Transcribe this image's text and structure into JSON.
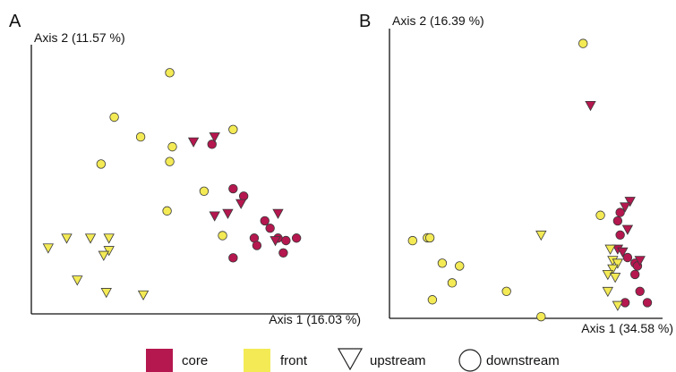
{
  "colors": {
    "core": "#b5174f",
    "front": "#f3ea55",
    "marker_stroke": "#3a3a3a"
  },
  "chart_data": [
    {
      "type": "scatter",
      "panel": "A",
      "xlabel": "Axis 1 (16.03 %)",
      "ylabel": "Axis 2 (11.57 %)",
      "grid": false,
      "points": [
        {
          "x": 0.49,
          "y": 0.93,
          "group": "front",
          "position": "downstream"
        },
        {
          "x": 0.28,
          "y": 0.75,
          "group": "front",
          "position": "downstream"
        },
        {
          "x": 0.38,
          "y": 0.67,
          "group": "front",
          "position": "downstream"
        },
        {
          "x": 0.5,
          "y": 0.63,
          "group": "front",
          "position": "downstream"
        },
        {
          "x": 0.73,
          "y": 0.7,
          "group": "front",
          "position": "downstream"
        },
        {
          "x": 0.23,
          "y": 0.56,
          "group": "front",
          "position": "downstream"
        },
        {
          "x": 0.49,
          "y": 0.57,
          "group": "front",
          "position": "downstream"
        },
        {
          "x": 0.62,
          "y": 0.45,
          "group": "front",
          "position": "downstream"
        },
        {
          "x": 0.48,
          "y": 0.37,
          "group": "front",
          "position": "downstream"
        },
        {
          "x": 0.69,
          "y": 0.27,
          "group": "front",
          "position": "downstream"
        },
        {
          "x": 0.65,
          "y": 0.64,
          "group": "core",
          "position": "downstream"
        },
        {
          "x": 0.73,
          "y": 0.46,
          "group": "core",
          "position": "downstream"
        },
        {
          "x": 0.77,
          "y": 0.43,
          "group": "core",
          "position": "downstream"
        },
        {
          "x": 0.85,
          "y": 0.33,
          "group": "core",
          "position": "downstream"
        },
        {
          "x": 0.87,
          "y": 0.3,
          "group": "core",
          "position": "downstream"
        },
        {
          "x": 0.81,
          "y": 0.26,
          "group": "core",
          "position": "downstream"
        },
        {
          "x": 0.82,
          "y": 0.23,
          "group": "core",
          "position": "downstream"
        },
        {
          "x": 0.9,
          "y": 0.26,
          "group": "core",
          "position": "downstream"
        },
        {
          "x": 0.93,
          "y": 0.25,
          "group": "core",
          "position": "downstream"
        },
        {
          "x": 0.97,
          "y": 0.26,
          "group": "core",
          "position": "downstream"
        },
        {
          "x": 0.92,
          "y": 0.2,
          "group": "core",
          "position": "downstream"
        },
        {
          "x": 0.73,
          "y": 0.18,
          "group": "core",
          "position": "downstream"
        },
        {
          "x": 0.58,
          "y": 0.65,
          "group": "core",
          "position": "upstream"
        },
        {
          "x": 0.66,
          "y": 0.67,
          "group": "core",
          "position": "upstream"
        },
        {
          "x": 0.76,
          "y": 0.4,
          "group": "core",
          "position": "upstream"
        },
        {
          "x": 0.66,
          "y": 0.35,
          "group": "core",
          "position": "upstream"
        },
        {
          "x": 0.71,
          "y": 0.36,
          "group": "core",
          "position": "upstream"
        },
        {
          "x": 0.9,
          "y": 0.36,
          "group": "core",
          "position": "upstream"
        },
        {
          "x": 0.89,
          "y": 0.25,
          "group": "core",
          "position": "upstream"
        },
        {
          "x": 0.1,
          "y": 0.26,
          "group": "front",
          "position": "upstream"
        },
        {
          "x": 0.19,
          "y": 0.26,
          "group": "front",
          "position": "upstream"
        },
        {
          "x": 0.26,
          "y": 0.26,
          "group": "front",
          "position": "upstream"
        },
        {
          "x": 0.03,
          "y": 0.22,
          "group": "front",
          "position": "upstream"
        },
        {
          "x": 0.26,
          "y": 0.21,
          "group": "front",
          "position": "upstream"
        },
        {
          "x": 0.24,
          "y": 0.19,
          "group": "front",
          "position": "upstream"
        },
        {
          "x": 0.14,
          "y": 0.09,
          "group": "front",
          "position": "upstream"
        },
        {
          "x": 0.25,
          "y": 0.04,
          "group": "front",
          "position": "upstream"
        },
        {
          "x": 0.39,
          "y": 0.03,
          "group": "front",
          "position": "upstream"
        }
      ]
    },
    {
      "type": "scatter",
      "panel": "B",
      "xlabel": "Axis 1 (34.58 %)",
      "ylabel": "Axis 2 (16.39 %)",
      "grid": false,
      "points": [
        {
          "x": 0.74,
          "y": 0.96,
          "group": "front",
          "position": "downstream"
        },
        {
          "x": 0.77,
          "y": 0.74,
          "group": "core",
          "position": "upstream"
        },
        {
          "x": 0.81,
          "y": 0.35,
          "group": "front",
          "position": "downstream"
        },
        {
          "x": 0.05,
          "y": 0.26,
          "group": "front",
          "position": "downstream"
        },
        {
          "x": 0.11,
          "y": 0.27,
          "group": "front",
          "position": "downstream"
        },
        {
          "x": 0.12,
          "y": 0.27,
          "group": "front",
          "position": "downstream"
        },
        {
          "x": 0.17,
          "y": 0.18,
          "group": "front",
          "position": "downstream"
        },
        {
          "x": 0.24,
          "y": 0.17,
          "group": "front",
          "position": "downstream"
        },
        {
          "x": 0.21,
          "y": 0.11,
          "group": "front",
          "position": "downstream"
        },
        {
          "x": 0.13,
          "y": 0.05,
          "group": "front",
          "position": "downstream"
        },
        {
          "x": 0.43,
          "y": 0.08,
          "group": "front",
          "position": "downstream"
        },
        {
          "x": 0.57,
          "y": -0.01,
          "group": "front",
          "position": "downstream"
        },
        {
          "x": 0.57,
          "y": 0.28,
          "group": "front",
          "position": "upstream"
        },
        {
          "x": 0.93,
          "y": 0.4,
          "group": "core",
          "position": "upstream"
        },
        {
          "x": 0.91,
          "y": 0.38,
          "group": "core",
          "position": "upstream"
        },
        {
          "x": 0.89,
          "y": 0.36,
          "group": "core",
          "position": "downstream"
        },
        {
          "x": 0.88,
          "y": 0.33,
          "group": "core",
          "position": "downstream"
        },
        {
          "x": 0.92,
          "y": 0.3,
          "group": "core",
          "position": "upstream"
        },
        {
          "x": 0.89,
          "y": 0.28,
          "group": "core",
          "position": "downstream"
        },
        {
          "x": 0.88,
          "y": 0.23,
          "group": "core",
          "position": "upstream"
        },
        {
          "x": 0.9,
          "y": 0.22,
          "group": "core",
          "position": "upstream"
        },
        {
          "x": 0.92,
          "y": 0.2,
          "group": "core",
          "position": "downstream"
        },
        {
          "x": 0.95,
          "y": 0.18,
          "group": "core",
          "position": "downstream"
        },
        {
          "x": 0.96,
          "y": 0.17,
          "group": "core",
          "position": "downstream"
        },
        {
          "x": 0.97,
          "y": 0.19,
          "group": "core",
          "position": "upstream"
        },
        {
          "x": 0.95,
          "y": 0.14,
          "group": "core",
          "position": "downstream"
        },
        {
          "x": 0.97,
          "y": 0.08,
          "group": "core",
          "position": "downstream"
        },
        {
          "x": 1.0,
          "y": 0.04,
          "group": "core",
          "position": "downstream"
        },
        {
          "x": 0.91,
          "y": 0.04,
          "group": "core",
          "position": "downstream"
        },
        {
          "x": 0.85,
          "y": 0.23,
          "group": "front",
          "position": "upstream"
        },
        {
          "x": 0.86,
          "y": 0.19,
          "group": "front",
          "position": "upstream"
        },
        {
          "x": 0.88,
          "y": 0.18,
          "group": "front",
          "position": "upstream"
        },
        {
          "x": 0.86,
          "y": 0.16,
          "group": "front",
          "position": "upstream"
        },
        {
          "x": 0.84,
          "y": 0.14,
          "group": "front",
          "position": "upstream"
        },
        {
          "x": 0.87,
          "y": 0.13,
          "group": "front",
          "position": "upstream"
        },
        {
          "x": 0.84,
          "y": 0.08,
          "group": "front",
          "position": "upstream"
        },
        {
          "x": 0.88,
          "y": 0.03,
          "group": "front",
          "position": "upstream"
        }
      ]
    }
  ],
  "legend": {
    "placement": "bottom",
    "items": [
      {
        "label": "core",
        "kind": "swatch",
        "group": "core"
      },
      {
        "label": "front",
        "kind": "swatch",
        "group": "front"
      },
      {
        "label": "upstream",
        "kind": "triangle"
      },
      {
        "label": "downstream",
        "kind": "circle"
      }
    ]
  }
}
